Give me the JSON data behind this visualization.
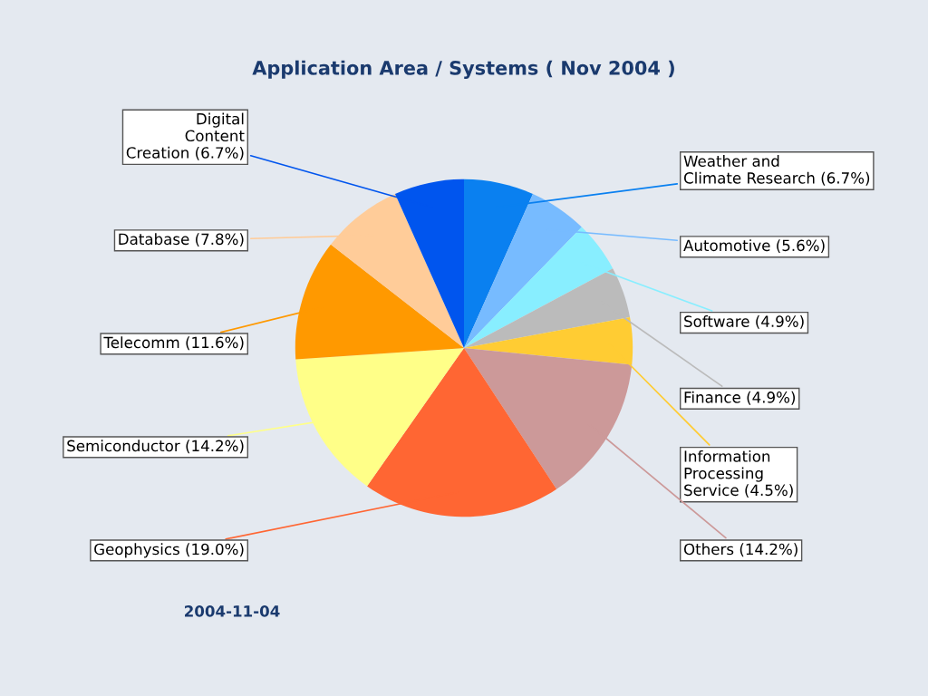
{
  "chart_data": {
    "type": "pie",
    "title": "Application Area / Systems ( Nov 2004 )",
    "categories": [
      "Weather and\nClimate Research (6.7%)",
      "Automotive (5.6%)",
      "Software (4.9%)",
      "Finance (4.9%)",
      "Information\nProcessing\nService (4.5%)",
      "Others (14.2%)",
      "Geophysics (19.0%)",
      "Semiconductor (14.2%)",
      "Telecomm (11.6%)",
      "Database (7.8%)",
      "Digital\nContent\nCreation (6.7%)"
    ],
    "values": [
      6.7,
      5.6,
      4.9,
      4.9,
      4.5,
      14.2,
      19.0,
      14.2,
      11.6,
      7.8,
      6.7
    ],
    "colors": [
      "#0a80f0",
      "#77bbff",
      "#88eeff",
      "#bbbbbb",
      "#ffcc33",
      "#cc9999",
      "#ff6633",
      "#ffff88",
      "#ff9900",
      "#ffcc99",
      "#0055ee"
    ],
    "annotations": [
      "2004-11-04"
    ]
  }
}
